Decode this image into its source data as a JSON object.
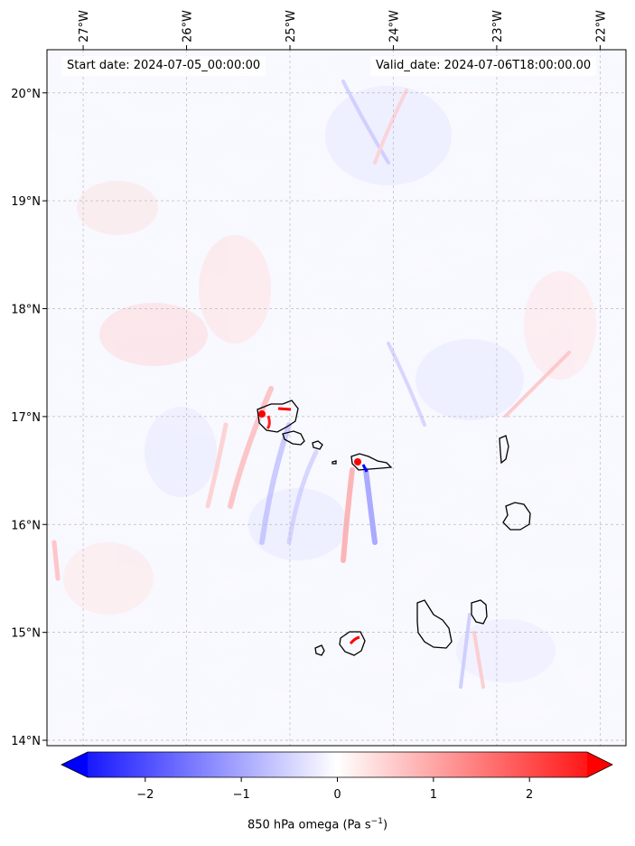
{
  "map": {
    "start_label": "Start date: 2024-07-05_00:00:00",
    "valid_label": "Valid_date: 2024-07-06T18:00:00.00",
    "lon_ticks": [
      "27°W",
      "26°W",
      "25°W",
      "24°W",
      "23°W",
      "22°W"
    ],
    "lat_ticks": [
      "20°N",
      "19°N",
      "18°N",
      "17°N",
      "16°N",
      "15°N",
      "14°N"
    ],
    "lon_range": [
      -27.35,
      -21.75
    ],
    "lat_range": [
      13.95,
      20.4
    ],
    "grid": true,
    "colormap": "bwr",
    "colors": {
      "negative": "#0000ff",
      "zero": "#ffffff",
      "positive": "#ff0000",
      "coast": "#000000"
    }
  },
  "colorbar": {
    "label_prefix": "850 hPa omega (Pa s",
    "label_exp": "−1",
    "label_suffix": ")",
    "range": [
      -2.6,
      2.6
    ],
    "extend": "both",
    "ticks": [
      "−2",
      "−1",
      "0",
      "1",
      "2"
    ],
    "tick_values": [
      -2,
      -1,
      0,
      1,
      2
    ]
  }
}
